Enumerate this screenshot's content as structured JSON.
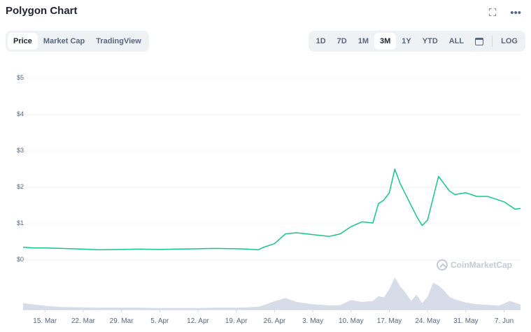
{
  "header": {
    "title": "Polygon Chart"
  },
  "icons": {
    "expand": "expand-icon",
    "more": "more-icon",
    "calendar": "calendar-icon",
    "logo": "coinmarketcap-logo-icon"
  },
  "tabs": [
    "Price",
    "Market Cap",
    "TradingView"
  ],
  "active_tab": "Price",
  "ranges": [
    "1D",
    "7D",
    "1M",
    "3M",
    "1Y",
    "YTD",
    "ALL"
  ],
  "active_range": "3M",
  "log_label": "LOG",
  "watermark": "CoinMarketCap",
  "colors": {
    "line": "#16c784",
    "volume": "#cfd6e4",
    "grid": "#eff2f5",
    "text": "#58667e"
  },
  "chart_data": {
    "type": "line",
    "title": "",
    "xlabel": "",
    "ylabel": "",
    "ylim": [
      0,
      5
    ],
    "y_ticks": [
      "$0",
      "$1",
      "$2",
      "$3",
      "$4",
      "$5"
    ],
    "x_ticks": [
      "15. Mar",
      "22. Mar",
      "29. Mar",
      "5. Apr",
      "12. Apr",
      "19. Apr",
      "26. Apr",
      "3. May",
      "10. May",
      "17. May",
      "24. May",
      "31. May",
      "7. Jun"
    ],
    "grid": true,
    "series": [
      {
        "kind": "price",
        "x": [
          "11. Mar",
          "13. Mar",
          "15. Mar",
          "18. Mar",
          "22. Mar",
          "25. Mar",
          "29. Mar",
          "1. Apr",
          "5. Apr",
          "8. Apr",
          "12. Apr",
          "15. Apr",
          "19. Apr",
          "21. Apr",
          "23. Apr",
          "24. Apr",
          "26. Apr",
          "28. Apr",
          "30. Apr",
          "3. May",
          "6. May",
          "8. May",
          "10. May",
          "12. May",
          "14. May",
          "15. May",
          "16. May",
          "17. May",
          "18. May",
          "19. May",
          "20. May",
          "21. May",
          "22. May",
          "23. May",
          "24. May",
          "25. May",
          "26. May",
          "27. May",
          "28. May",
          "29. May",
          "31. May",
          "2. Jun",
          "4. Jun",
          "5. Jun",
          "6. Jun",
          "7. Jun",
          "8. Jun",
          "9. Jun",
          "10. Jun"
        ],
        "values": [
          0.35,
          0.33,
          0.33,
          0.32,
          0.3,
          0.28,
          0.29,
          0.3,
          0.29,
          0.3,
          0.31,
          0.32,
          0.31,
          0.3,
          0.28,
          0.35,
          0.45,
          0.72,
          0.75,
          0.7,
          0.65,
          0.72,
          0.92,
          1.05,
          1.02,
          1.55,
          1.65,
          1.85,
          2.5,
          2.1,
          1.8,
          1.5,
          1.2,
          0.95,
          1.1,
          1.7,
          2.3,
          2.1,
          1.9,
          1.8,
          1.85,
          1.75,
          1.75,
          1.7,
          1.65,
          1.6,
          1.5,
          1.4,
          1.42
        ]
      },
      {
        "kind": "volume",
        "x": [
          "11. Mar",
          "13. Mar",
          "15. Mar",
          "18. Mar",
          "22. Mar",
          "25. Mar",
          "29. Mar",
          "1. Apr",
          "5. Apr",
          "8. Apr",
          "12. Apr",
          "15. Apr",
          "19. Apr",
          "21. Apr",
          "23. Apr",
          "24. Apr",
          "26. Apr",
          "28. Apr",
          "30. Apr",
          "3. May",
          "6. May",
          "8. May",
          "10. May",
          "12. May",
          "14. May",
          "15. May",
          "16. May",
          "17. May",
          "18. May",
          "19. May",
          "20. May",
          "21. May",
          "22. May",
          "23. May",
          "24. May",
          "25. May",
          "26. May",
          "27. May",
          "28. May",
          "29. May",
          "31. May",
          "2. Jun",
          "4. Jun",
          "5. Jun",
          "6. Jun",
          "7. Jun",
          "8. Jun",
          "9. Jun",
          "10. Jun"
        ],
        "values": [
          0.2,
          0.16,
          0.12,
          0.08,
          0.07,
          0.06,
          0.06,
          0.06,
          0.05,
          0.05,
          0.05,
          0.06,
          0.06,
          0.07,
          0.09,
          0.14,
          0.26,
          0.36,
          0.24,
          0.17,
          0.13,
          0.14,
          0.3,
          0.24,
          0.27,
          0.42,
          0.38,
          0.64,
          1.0,
          0.72,
          0.52,
          0.28,
          0.46,
          0.2,
          0.4,
          0.84,
          0.75,
          0.6,
          0.4,
          0.32,
          0.22,
          0.17,
          0.15,
          0.14,
          0.12,
          0.19,
          0.27,
          0.22,
          0.16
        ]
      }
    ]
  }
}
